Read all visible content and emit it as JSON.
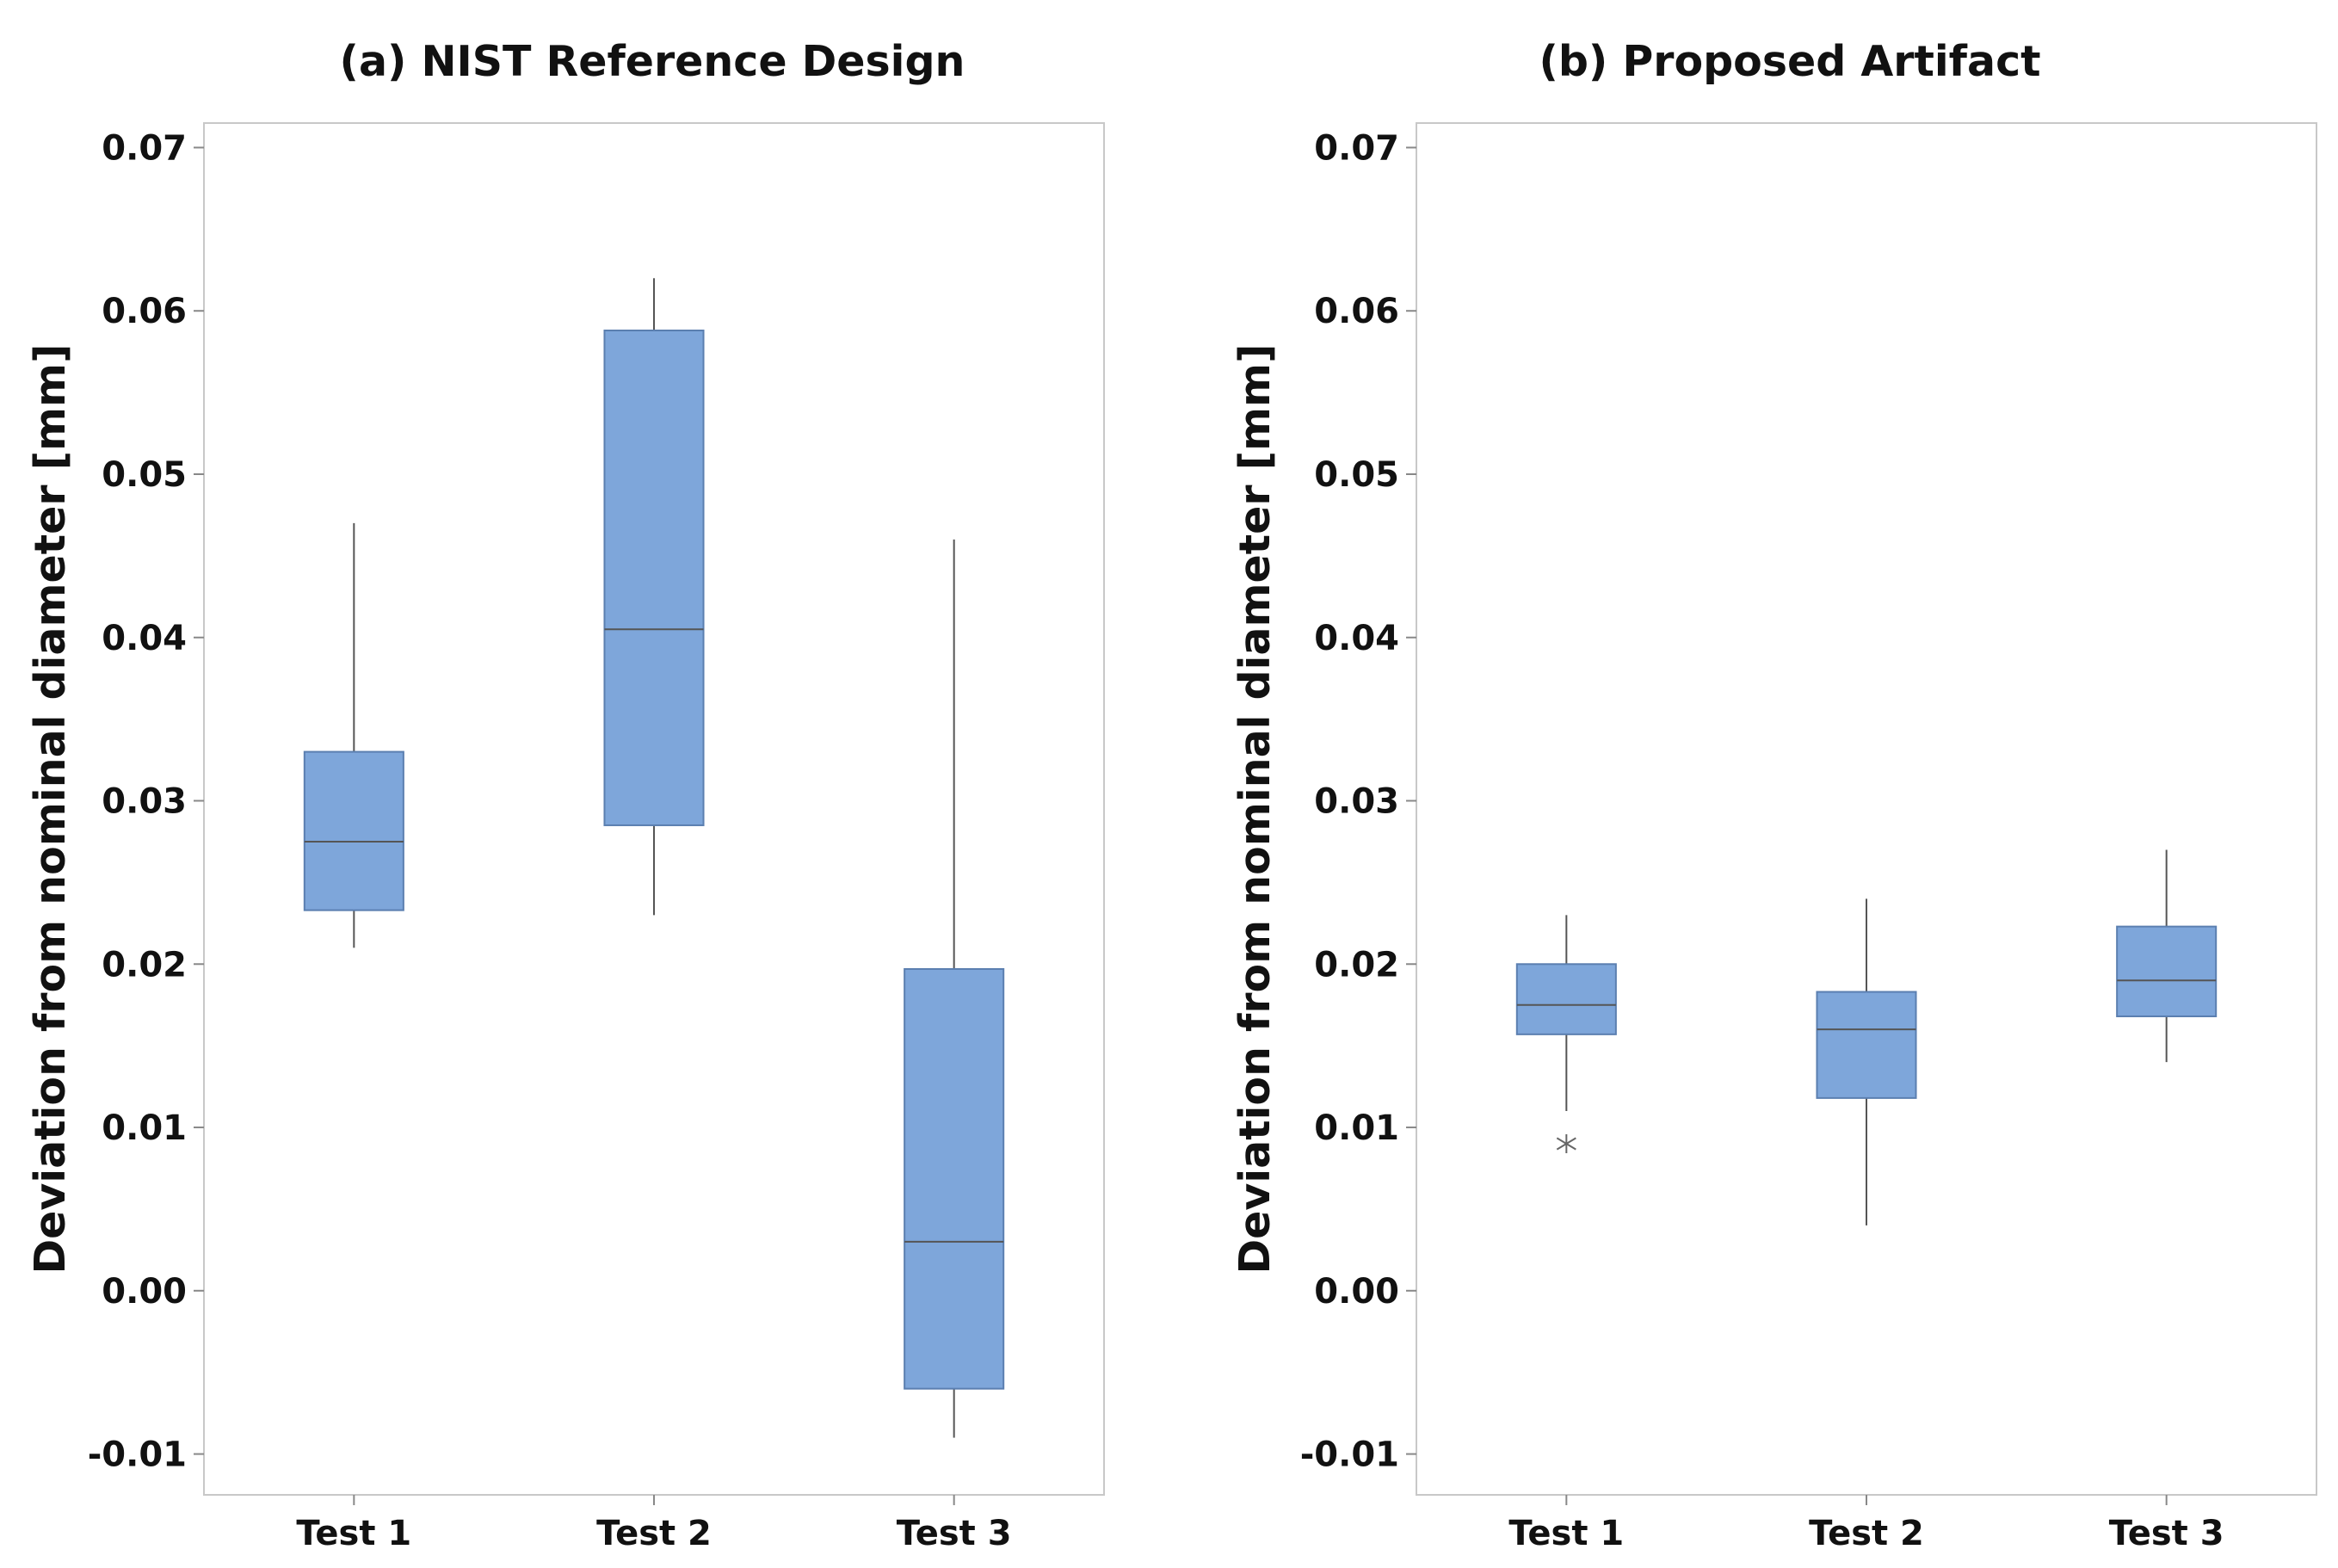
{
  "chart_data": [
    {
      "type": "box",
      "title": "(a) NIST Reference Design",
      "xlabel": "",
      "ylabel": "Deviation from nominal diameter [mm]",
      "ylim": [
        -0.0125,
        0.0715
      ],
      "yticks": [
        "-0.01",
        "0.00",
        "0.01",
        "0.02",
        "0.03",
        "0.04",
        "0.05",
        "0.06",
        "0.07"
      ],
      "ytick_values": [
        -0.01,
        0.0,
        0.01,
        0.02,
        0.03,
        0.04,
        0.05,
        0.06,
        0.07
      ],
      "categories": [
        "Test 1",
        "Test 2",
        "Test 3"
      ],
      "boxes": [
        {
          "whisker_low": 0.021,
          "q1": 0.0233,
          "median": 0.0275,
          "q3": 0.033,
          "whisker_high": 0.047,
          "outliers": []
        },
        {
          "whisker_low": 0.023,
          "q1": 0.0285,
          "median": 0.0405,
          "q3": 0.0588,
          "whisker_high": 0.062,
          "outliers": []
        },
        {
          "whisker_low": -0.009,
          "q1": -0.006,
          "median": 0.003,
          "q3": 0.0197,
          "whisker_high": 0.046,
          "outliers": []
        }
      ]
    },
    {
      "type": "box",
      "title": "(b) Proposed Artifact",
      "xlabel": "",
      "ylabel": "Deviation from nominal diameter [mm]",
      "ylim": [
        -0.0125,
        0.0715
      ],
      "yticks": [
        "-0.01",
        "0.00",
        "0.01",
        "0.02",
        "0.03",
        "0.04",
        "0.05",
        "0.06",
        "0.07"
      ],
      "ytick_values": [
        -0.01,
        0.0,
        0.01,
        0.02,
        0.03,
        0.04,
        0.05,
        0.06,
        0.07
      ],
      "categories": [
        "Test 1",
        "Test 2",
        "Test 3"
      ],
      "boxes": [
        {
          "whisker_low": 0.011,
          "q1": 0.0157,
          "median": 0.0175,
          "q3": 0.02,
          "whisker_high": 0.023,
          "outliers": [
            0.009
          ]
        },
        {
          "whisker_low": 0.004,
          "q1": 0.0118,
          "median": 0.016,
          "q3": 0.0183,
          "whisker_high": 0.024,
          "outliers": []
        },
        {
          "whisker_low": 0.014,
          "q1": 0.0168,
          "median": 0.019,
          "q3": 0.0223,
          "whisker_high": 0.027,
          "outliers": []
        }
      ]
    }
  ],
  "colors": {
    "box_fill": "#7ea6da",
    "box_edge": "#5b7fb0",
    "line": "#555555",
    "frame": "#c8c8c8"
  },
  "outlier_marker": "asterisk"
}
